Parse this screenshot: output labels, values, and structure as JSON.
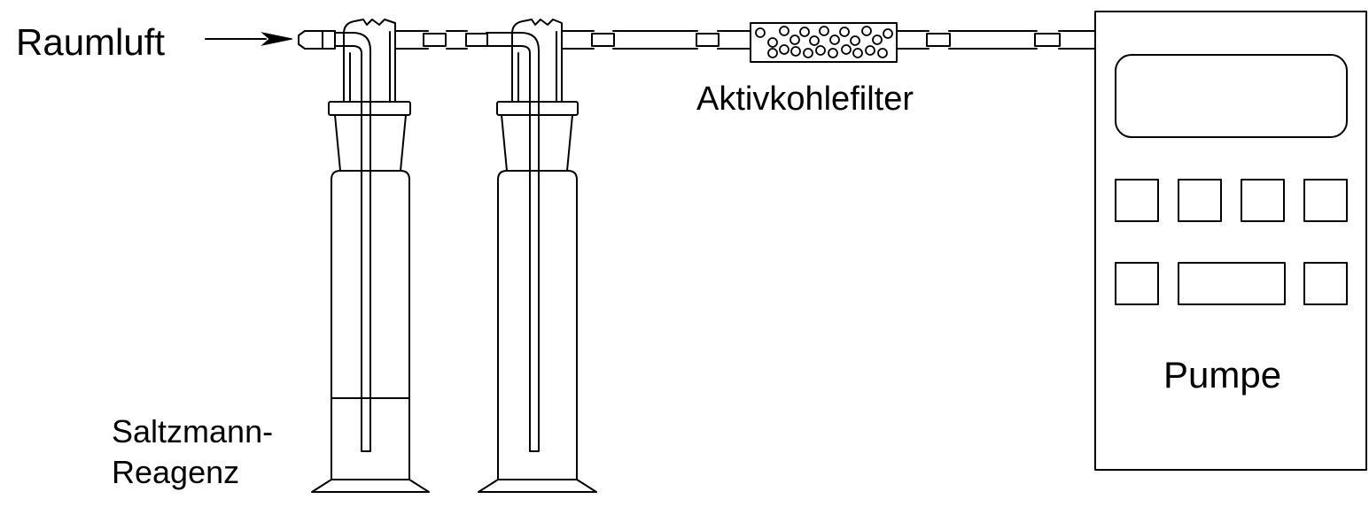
{
  "labels": {
    "inlet": "Raumluft",
    "filter": "Aktivkohlefilter",
    "pump": "Pumpe",
    "reagent_line1": "Saltzmann-",
    "reagent_line2": "Reagenz"
  },
  "pump_panel": {
    "display_count": 1,
    "button_rows": [
      [
        "key",
        "key",
        "key",
        "key"
      ],
      [
        "key",
        "wide-key",
        "key"
      ]
    ]
  },
  "colors": {
    "line": "#000000",
    "background": "#ffffff"
  },
  "icons": {
    "inlet_arrow": "arrow-right-icon",
    "filter_granules": "circle-icon"
  }
}
